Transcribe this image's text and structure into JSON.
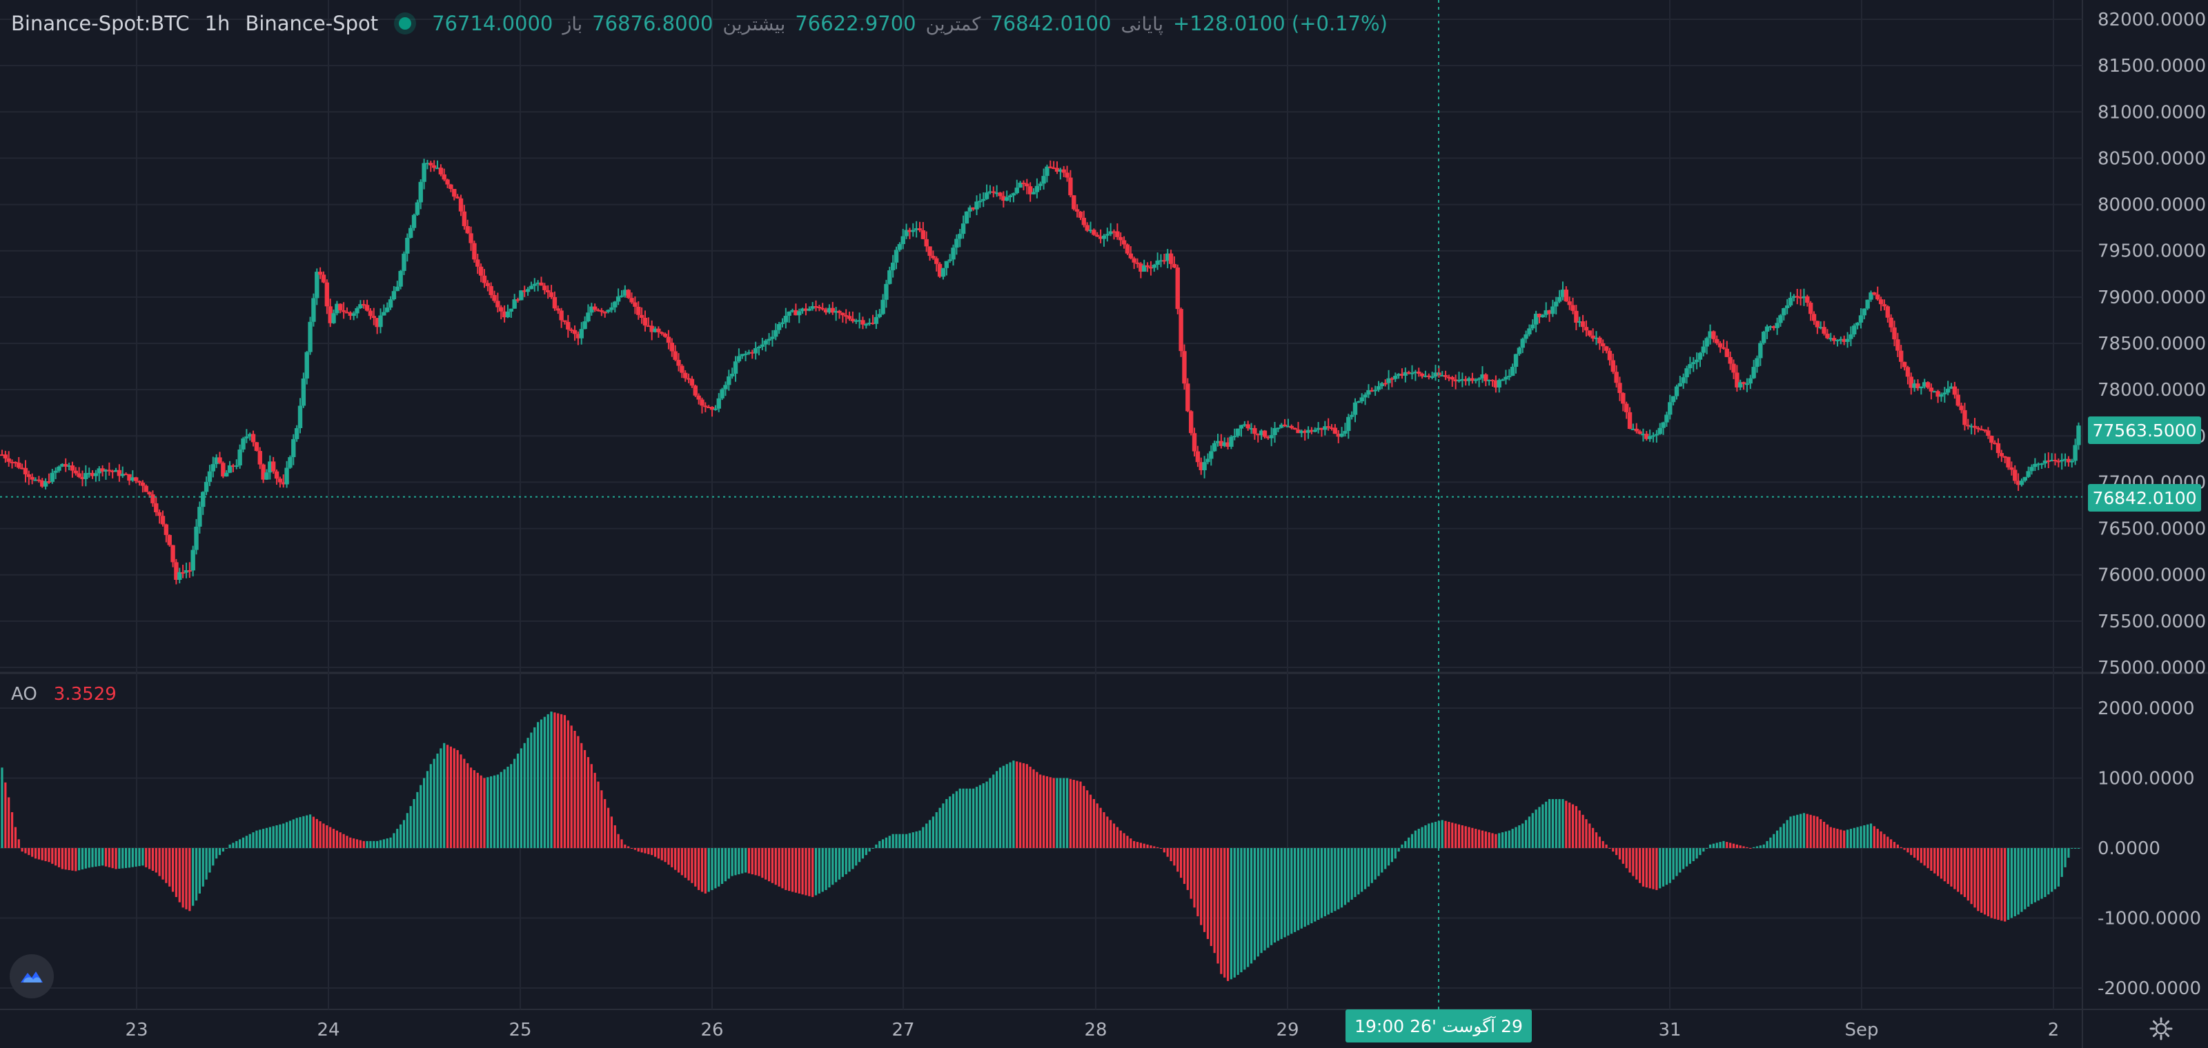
{
  "legend": {
    "symbol": "Binance-Spot:BTC",
    "interval": "1h",
    "exchange": "Binance-Spot",
    "open_label": "باز",
    "open": "76714.0000",
    "high_label": "بیشترین",
    "high": "76876.8000",
    "low_label": "کمترین",
    "low": "76622.9700",
    "close_label": "پایانی",
    "close": "76842.0100",
    "change": "+128.0100 (+0.17%)"
  },
  "indicator": {
    "name": "AO",
    "value": "3.3529"
  },
  "price_tags": {
    "crosshair": "77563.5000",
    "last": "76842.0100"
  },
  "time_tag": {
    "day": "26'",
    "month": "آگوست",
    "date": "29",
    "time": "19:00"
  },
  "colors": {
    "up": "#22ab94",
    "down": "#f23645",
    "bg": "#161a25",
    "grid": "#232733",
    "text": "#b2b5be"
  },
  "icons": {
    "logo": "tradingview-cloud-icon",
    "settings": "gear-icon"
  },
  "chart_data": [
    {
      "type": "candlestick",
      "title": "Binance-Spot:BTC",
      "interval": "1h",
      "x_tick_labels": [
        "23",
        "24",
        "25",
        "26",
        "27",
        "28",
        "29",
        "31",
        "Sep",
        "2"
      ],
      "y_tick_labels": [
        "82000.0000",
        "81500.0000",
        "81000.0000",
        "80500.0000",
        "80000.0000",
        "79500.0000",
        "79000.0000",
        "78500.0000",
        "78000.0000",
        "77500.0000",
        "77000.0000",
        "76500.0000",
        "76000.0000",
        "75500.0000",
        "75000.0000"
      ],
      "ylim": [
        75000,
        82000
      ],
      "last_price": 76842.01,
      "close_path": [
        [
          0,
          77300
        ],
        [
          6,
          77150
        ],
        [
          12,
          76950
        ],
        [
          18,
          77200
        ],
        [
          24,
          77050
        ],
        [
          30,
          77150
        ],
        [
          36,
          77080
        ],
        [
          42,
          76980
        ],
        [
          45,
          76800
        ],
        [
          50,
          76350
        ],
        [
          52,
          75950
        ],
        [
          54,
          76050
        ],
        [
          56,
          76050
        ],
        [
          58,
          76500
        ],
        [
          60,
          76900
        ],
        [
          62,
          77100
        ],
        [
          64,
          77300
        ],
        [
          66,
          77050
        ],
        [
          68,
          77150
        ],
        [
          70,
          77200
        ],
        [
          72,
          77450
        ],
        [
          74,
          77550
        ],
        [
          76,
          77350
        ],
        [
          78,
          77000
        ],
        [
          80,
          77250
        ],
        [
          82,
          77050
        ],
        [
          84,
          76950
        ],
        [
          86,
          77300
        ],
        [
          88,
          77600
        ],
        [
          90,
          78100
        ],
        [
          92,
          78700
        ],
        [
          94,
          79300
        ],
        [
          96,
          79150
        ],
        [
          98,
          78700
        ],
        [
          100,
          78900
        ],
        [
          104,
          78800
        ],
        [
          108,
          78950
        ],
        [
          112,
          78700
        ],
        [
          118,
          79100
        ],
        [
          120,
          79500
        ],
        [
          124,
          80050
        ],
        [
          126,
          80450
        ],
        [
          130,
          80400
        ],
        [
          132,
          80250
        ],
        [
          136,
          80050
        ],
        [
          138,
          79800
        ],
        [
          142,
          79300
        ],
        [
          146,
          79050
        ],
        [
          150,
          78800
        ],
        [
          154,
          79000
        ],
        [
          158,
          79150
        ],
        [
          162,
          79100
        ],
        [
          168,
          78700
        ],
        [
          172,
          78550
        ],
        [
          176,
          78900
        ],
        [
          180,
          78850
        ],
        [
          186,
          79050
        ],
        [
          192,
          78700
        ],
        [
          198,
          78550
        ],
        [
          204,
          78150
        ],
        [
          208,
          77900
        ],
        [
          212,
          77750
        ],
        [
          216,
          78050
        ],
        [
          220,
          78350
        ],
        [
          226,
          78450
        ],
        [
          230,
          78600
        ],
        [
          234,
          78800
        ],
        [
          238,
          78850
        ],
        [
          244,
          78900
        ],
        [
          250,
          78800
        ],
        [
          256,
          78750
        ],
        [
          260,
          78700
        ],
        [
          262,
          78850
        ],
        [
          266,
          79400
        ],
        [
          270,
          79750
        ],
        [
          274,
          79700
        ],
        [
          280,
          79250
        ],
        [
          284,
          79500
        ],
        [
          288,
          79900
        ],
        [
          292,
          80050
        ],
        [
          296,
          80150
        ],
        [
          300,
          80050
        ],
        [
          304,
          80250
        ],
        [
          308,
          80100
        ],
        [
          312,
          80400
        ],
        [
          316,
          80350
        ],
        [
          318,
          80300
        ],
        [
          320,
          79950
        ],
        [
          324,
          79750
        ],
        [
          328,
          79650
        ],
        [
          332,
          79700
        ],
        [
          336,
          79500
        ],
        [
          340,
          79300
        ],
        [
          344,
          79350
        ],
        [
          348,
          79450
        ],
        [
          350,
          79300
        ],
        [
          352,
          78400
        ],
        [
          354,
          77800
        ],
        [
          356,
          77300
        ],
        [
          358,
          77100
        ],
        [
          362,
          77450
        ],
        [
          366,
          77400
        ],
        [
          370,
          77650
        ],
        [
          374,
          77550
        ],
        [
          378,
          77500
        ],
        [
          382,
          77600
        ],
        [
          386,
          77550
        ],
        [
          390,
          77550
        ],
        [
          396,
          77600
        ],
        [
          400,
          77500
        ],
        [
          404,
          77850
        ],
        [
          408,
          78000
        ],
        [
          412,
          78050
        ],
        [
          416,
          78150
        ],
        [
          420,
          78200
        ],
        [
          424,
          78150
        ],
        [
          430,
          78150
        ],
        [
          436,
          78100
        ],
        [
          442,
          78150
        ],
        [
          446,
          78050
        ],
        [
          450,
          78150
        ],
        [
          454,
          78550
        ],
        [
          458,
          78800
        ],
        [
          462,
          78850
        ],
        [
          466,
          79050
        ],
        [
          470,
          78750
        ],
        [
          474,
          78600
        ],
        [
          478,
          78500
        ],
        [
          482,
          78100
        ],
        [
          486,
          77600
        ],
        [
          490,
          77500
        ],
        [
          494,
          77500
        ],
        [
          498,
          77850
        ],
        [
          502,
          78150
        ],
        [
          506,
          78350
        ],
        [
          510,
          78600
        ],
        [
          514,
          78450
        ],
        [
          518,
          78050
        ],
        [
          522,
          78100
        ],
        [
          526,
          78650
        ],
        [
          530,
          78700
        ],
        [
          534,
          79000
        ],
        [
          538,
          79000
        ],
        [
          542,
          78700
        ],
        [
          546,
          78550
        ],
        [
          550,
          78500
        ],
        [
          554,
          78750
        ],
        [
          558,
          79050
        ],
        [
          562,
          78900
        ],
        [
          566,
          78400
        ],
        [
          570,
          78050
        ],
        [
          574,
          78050
        ],
        [
          578,
          77950
        ],
        [
          582,
          78050
        ],
        [
          586,
          77650
        ],
        [
          590,
          77600
        ],
        [
          594,
          77450
        ],
        [
          598,
          77250
        ],
        [
          602,
          76950
        ],
        [
          606,
          77150
        ],
        [
          610,
          77250
        ],
        [
          614,
          77250
        ],
        [
          618,
          77200
        ],
        [
          620,
          77600
        ]
      ]
    },
    {
      "type": "histogram",
      "title": "AO",
      "y_tick_labels": [
        "2000.0000",
        "1000.0000",
        "0.0000",
        "-1000.0000",
        "-2000.0000"
      ],
      "ylim": [
        -2300,
        2000
      ],
      "last_value": 3.3529,
      "value_path": [
        [
          0,
          1150
        ],
        [
          4,
          300
        ],
        [
          6,
          -50
        ],
        [
          10,
          -150
        ],
        [
          14,
          -200
        ],
        [
          18,
          -300
        ],
        [
          22,
          -330
        ],
        [
          26,
          -280
        ],
        [
          30,
          -250
        ],
        [
          34,
          -300
        ],
        [
          38,
          -280
        ],
        [
          42,
          -250
        ],
        [
          46,
          -350
        ],
        [
          50,
          -550
        ],
        [
          54,
          -850
        ],
        [
          56,
          -900
        ],
        [
          58,
          -750
        ],
        [
          60,
          -550
        ],
        [
          62,
          -350
        ],
        [
          64,
          -150
        ],
        [
          66,
          -50
        ],
        [
          68,
          50
        ],
        [
          72,
          150
        ],
        [
          76,
          250
        ],
        [
          80,
          300
        ],
        [
          84,
          350
        ],
        [
          88,
          430
        ],
        [
          92,
          480
        ],
        [
          96,
          350
        ],
        [
          100,
          250
        ],
        [
          104,
          150
        ],
        [
          108,
          100
        ],
        [
          112,
          100
        ],
        [
          116,
          150
        ],
        [
          120,
          400
        ],
        [
          124,
          800
        ],
        [
          128,
          1200
        ],
        [
          132,
          1500
        ],
        [
          136,
          1400
        ],
        [
          140,
          1150
        ],
        [
          144,
          1000
        ],
        [
          148,
          1050
        ],
        [
          152,
          1200
        ],
        [
          156,
          1500
        ],
        [
          160,
          1800
        ],
        [
          164,
          1950
        ],
        [
          168,
          1900
        ],
        [
          172,
          1600
        ],
        [
          176,
          1200
        ],
        [
          180,
          700
        ],
        [
          184,
          200
        ],
        [
          186,
          50
        ],
        [
          190,
          -50
        ],
        [
          194,
          -100
        ],
        [
          198,
          -200
        ],
        [
          202,
          -350
        ],
        [
          206,
          -500
        ],
        [
          208,
          -600
        ],
        [
          210,
          -650
        ],
        [
          214,
          -550
        ],
        [
          218,
          -400
        ],
        [
          222,
          -350
        ],
        [
          226,
          -400
        ],
        [
          230,
          -500
        ],
        [
          234,
          -600
        ],
        [
          238,
          -650
        ],
        [
          242,
          -700
        ],
        [
          246,
          -600
        ],
        [
          250,
          -450
        ],
        [
          254,
          -300
        ],
        [
          258,
          -100
        ],
        [
          262,
          100
        ],
        [
          266,
          200
        ],
        [
          270,
          200
        ],
        [
          274,
          250
        ],
        [
          278,
          450
        ],
        [
          282,
          700
        ],
        [
          286,
          850
        ],
        [
          290,
          850
        ],
        [
          294,
          950
        ],
        [
          298,
          1150
        ],
        [
          302,
          1250
        ],
        [
          306,
          1200
        ],
        [
          310,
          1050
        ],
        [
          314,
          1000
        ],
        [
          318,
          1000
        ],
        [
          322,
          950
        ],
        [
          326,
          700
        ],
        [
          330,
          450
        ],
        [
          334,
          250
        ],
        [
          338,
          100
        ],
        [
          342,
          50
        ],
        [
          346,
          0
        ],
        [
          350,
          -250
        ],
        [
          354,
          -600
        ],
        [
          358,
          -1100
        ],
        [
          362,
          -1500
        ],
        [
          364,
          -1800
        ],
        [
          366,
          -1900
        ],
        [
          368,
          -1850
        ],
        [
          372,
          -1700
        ],
        [
          376,
          -1500
        ],
        [
          380,
          -1350
        ],
        [
          384,
          -1250
        ],
        [
          388,
          -1150
        ],
        [
          392,
          -1050
        ],
        [
          396,
          -950
        ],
        [
          400,
          -850
        ],
        [
          404,
          -700
        ],
        [
          408,
          -550
        ],
        [
          412,
          -350
        ],
        [
          416,
          -150
        ],
        [
          418,
          50
        ],
        [
          422,
          250
        ],
        [
          426,
          350
        ],
        [
          430,
          400
        ],
        [
          434,
          350
        ],
        [
          438,
          300
        ],
        [
          442,
          250
        ],
        [
          446,
          200
        ],
        [
          450,
          250
        ],
        [
          454,
          350
        ],
        [
          458,
          550
        ],
        [
          462,
          700
        ],
        [
          466,
          700
        ],
        [
          470,
          600
        ],
        [
          474,
          350
        ],
        [
          478,
          100
        ],
        [
          482,
          -100
        ],
        [
          486,
          -350
        ],
        [
          490,
          -550
        ],
        [
          494,
          -600
        ],
        [
          498,
          -500
        ],
        [
          502,
          -300
        ],
        [
          506,
          -150
        ],
        [
          510,
          50
        ],
        [
          514,
          100
        ],
        [
          518,
          50
        ],
        [
          522,
          0
        ],
        [
          526,
          50
        ],
        [
          530,
          250
        ],
        [
          534,
          450
        ],
        [
          538,
          500
        ],
        [
          542,
          450
        ],
        [
          546,
          300
        ],
        [
          550,
          250
        ],
        [
          554,
          300
        ],
        [
          558,
          350
        ],
        [
          562,
          200
        ],
        [
          566,
          50
        ],
        [
          570,
          -100
        ],
        [
          574,
          -250
        ],
        [
          578,
          -400
        ],
        [
          582,
          -550
        ],
        [
          586,
          -700
        ],
        [
          590,
          -900
        ],
        [
          594,
          -1000
        ],
        [
          598,
          -1050
        ],
        [
          602,
          -950
        ],
        [
          606,
          -800
        ],
        [
          610,
          -700
        ],
        [
          614,
          -550
        ],
        [
          618,
          0
        ]
      ]
    }
  ]
}
